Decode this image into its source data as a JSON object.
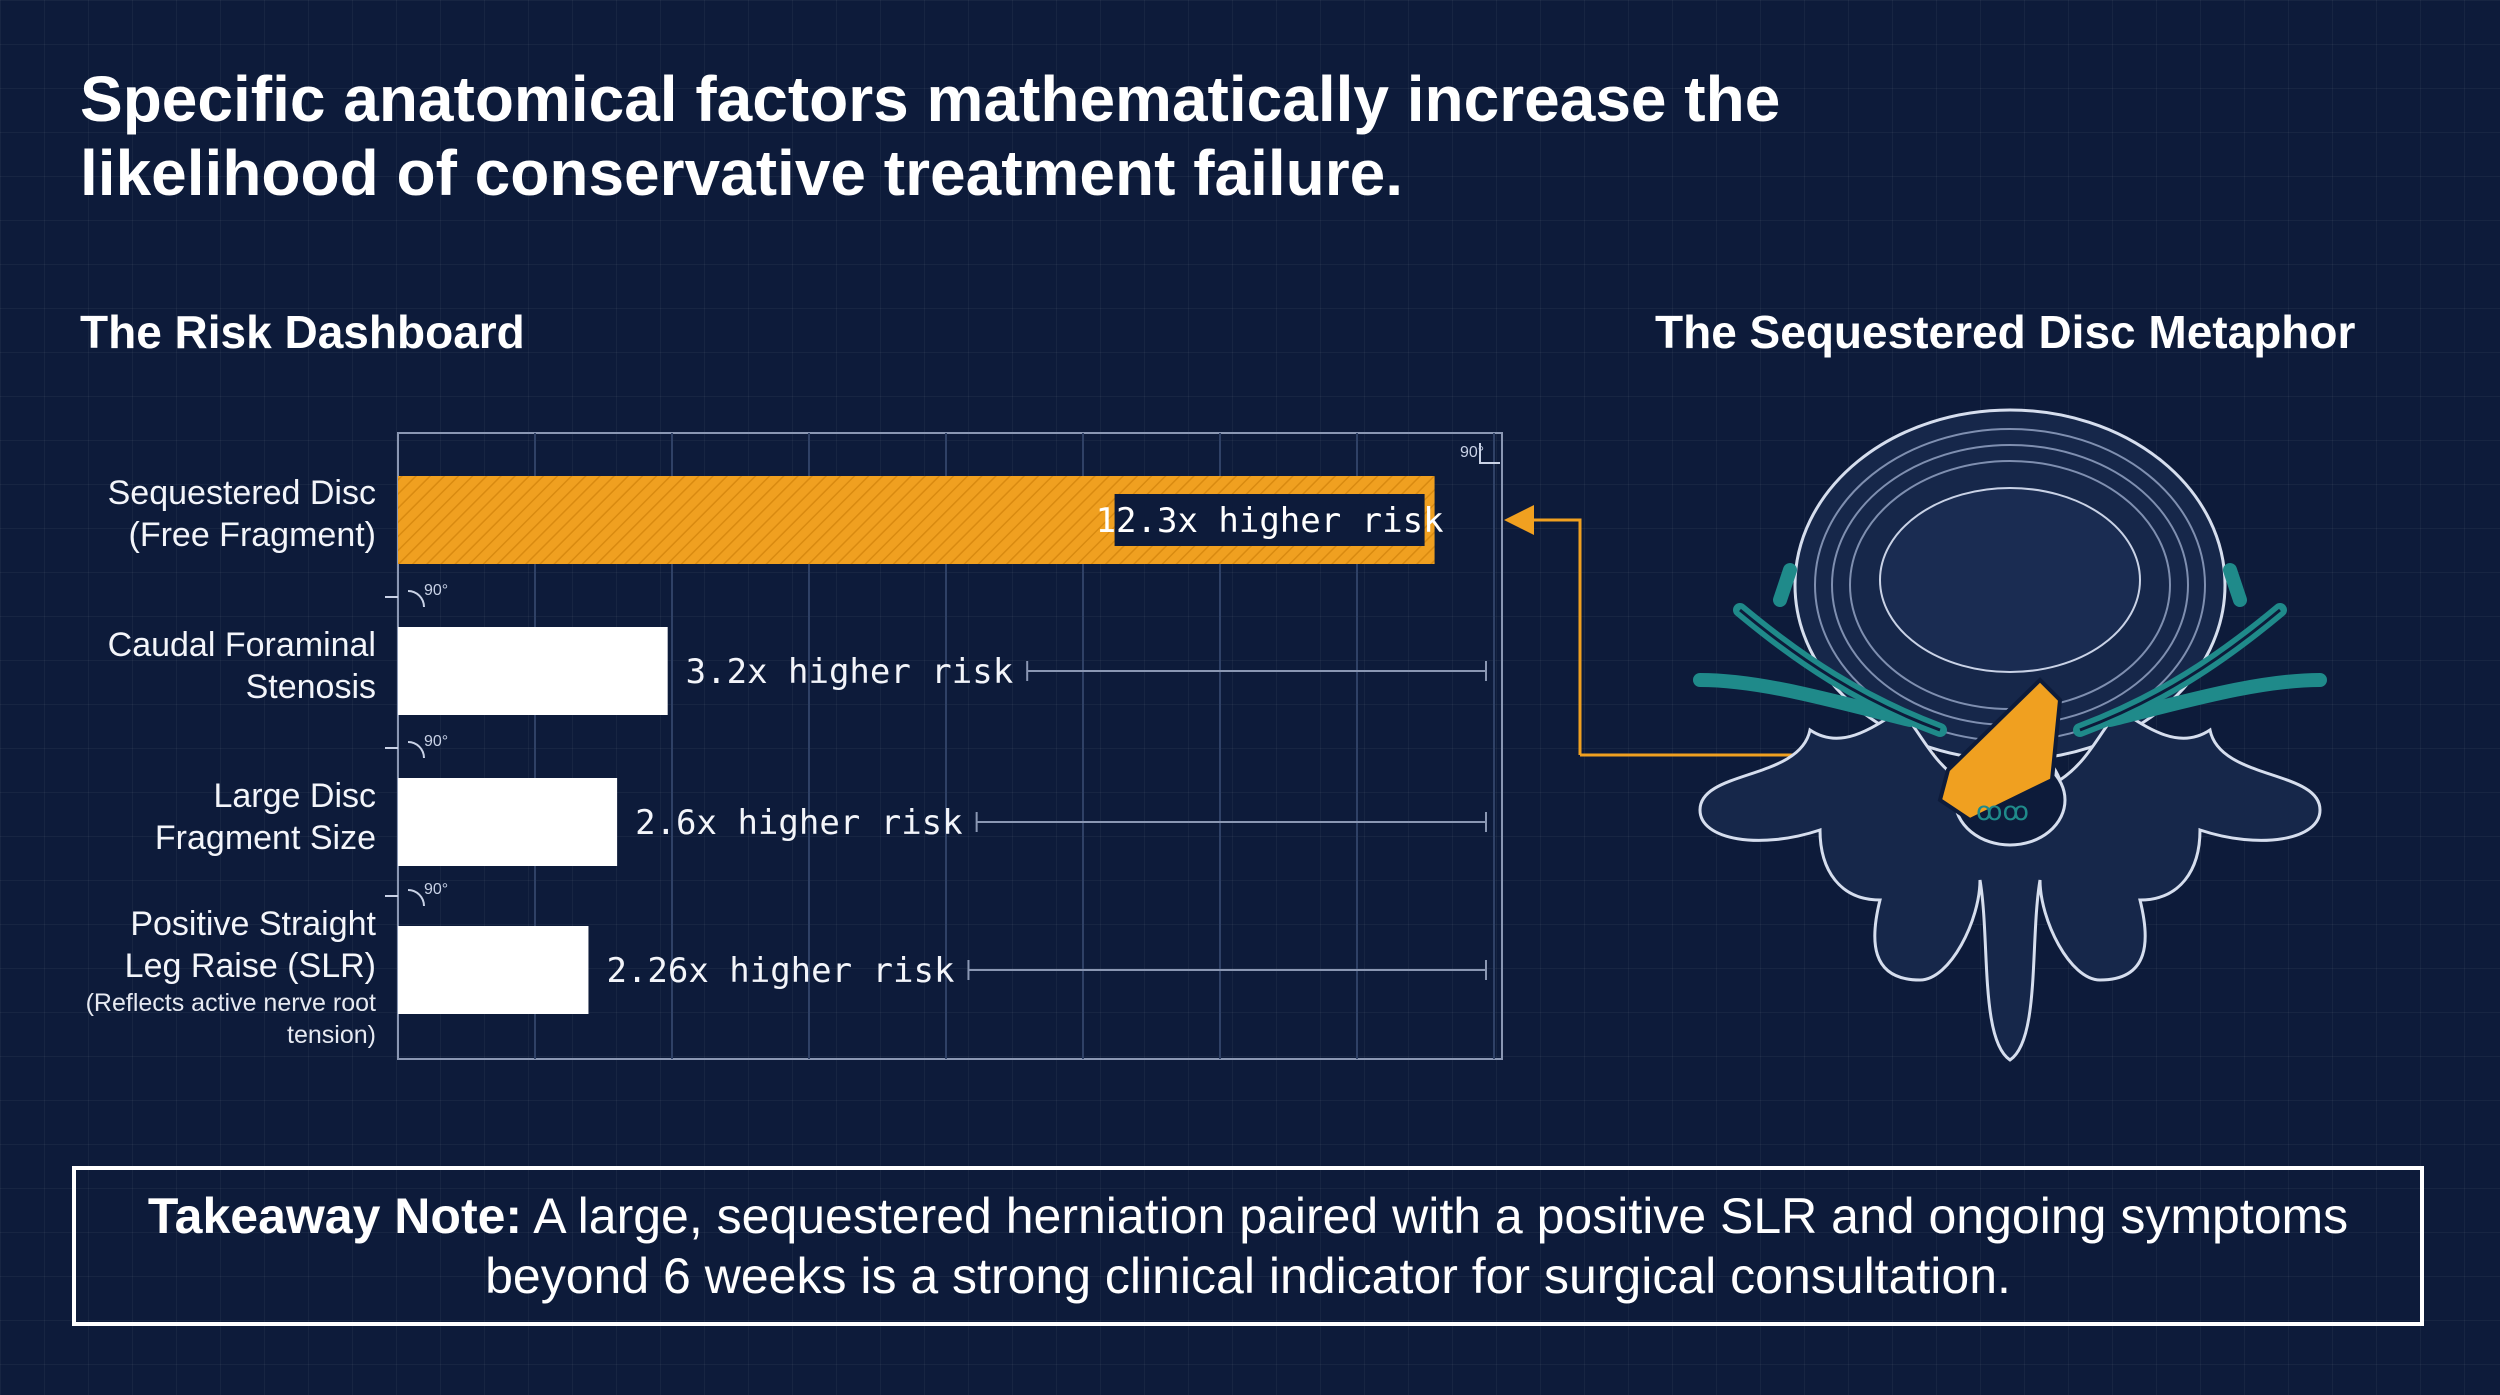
{
  "title": "Specific anatomical factors mathematically increase the likelihood of conservative treatment failure.",
  "dashboard_heading": "The Risk Dashboard",
  "metaphor_heading": "The Sequestered Disc Metaphor",
  "angle_marker": "90°",
  "takeaway": {
    "label": "Takeaway Note:",
    "text": "A large, sequestered herniation paired with a positive SLR and ongoing symptoms beyond 6 weeks is a strong clinical indicator for surgical consultation."
  },
  "colors": {
    "background": "#0d1b3a",
    "accent": "#f0a020",
    "nerve": "#1f8a8a",
    "bar": "#ffffff"
  },
  "chart_data": {
    "type": "bar",
    "orientation": "horizontal",
    "title": "The Risk Dashboard",
    "xlim": [
      0,
      13.1
    ],
    "categories": [
      {
        "label_lines": [
          "Sequestered Disc",
          "(Free Fragment)"
        ],
        "note": ""
      },
      {
        "label_lines": [
          "Caudal Foraminal",
          "Stenosis"
        ],
        "note": ""
      },
      {
        "label_lines": [
          "Large Disc",
          "Fragment Size"
        ],
        "note": ""
      },
      {
        "label_lines": [
          "Positive Straight",
          "Leg Raise (SLR)"
        ],
        "note": "(Reflects active nerve root tension)"
      }
    ],
    "values": [
      12.3,
      3.2,
      2.6,
      2.26
    ],
    "value_labels": [
      "12.3x  higher risk",
      "3.2x  higher risk",
      "2.6x  higher risk",
      "2.26x  higher risk"
    ],
    "highlight_index": 0
  }
}
